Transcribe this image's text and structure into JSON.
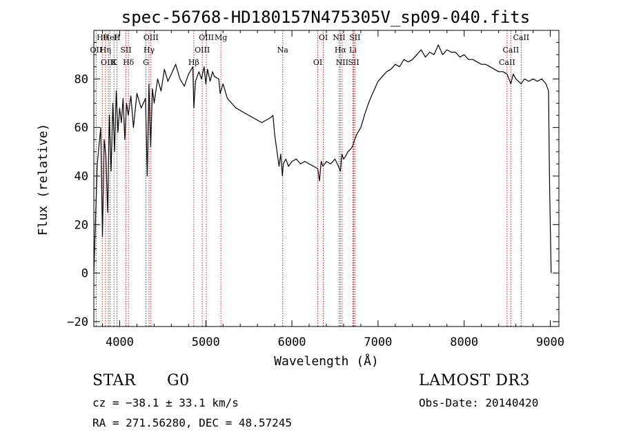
{
  "chart_data": {
    "type": "line",
    "title": "spec-56768-HD180157N475305V_sp09-040.fits",
    "xlabel": "Wavelength (Å)",
    "ylabel": "Flux (relative)",
    "xlim": [
      3700,
      9100
    ],
    "ylim": [
      -22,
      100
    ],
    "xticks": [
      4000,
      5000,
      6000,
      7000,
      8000,
      9000
    ],
    "xtick_labels": [
      "4000",
      "5000",
      "6000",
      "7000",
      "8000",
      "9000"
    ],
    "yticks": [
      -20,
      0,
      20,
      40,
      60,
      80
    ],
    "ytick_labels": [
      "−20",
      "0",
      "20",
      "40",
      "60",
      "80"
    ],
    "grid": false,
    "series": [
      {
        "color": "#000000",
        "x": [
          3700,
          3740,
          3780,
          3800,
          3820,
          3840,
          3860,
          3880,
          3900,
          3920,
          3940,
          3960,
          3980,
          4000,
          4020,
          4040,
          4060,
          4080,
          4100,
          4130,
          4160,
          4200,
          4250,
          4300,
          4320,
          4340,
          4360,
          4380,
          4400,
          4440,
          4480,
          4520,
          4560,
          4600,
          4650,
          4700,
          4750,
          4800,
          4850,
          4861,
          4880,
          4920,
          4950,
          4980,
          5000,
          5020,
          5050,
          5080,
          5100,
          5150,
          5167,
          5200,
          5250,
          5300,
          5350,
          5400,
          5450,
          5500,
          5550,
          5600,
          5650,
          5700,
          5750,
          5780,
          5800,
          5850,
          5870,
          5890,
          5900,
          5930,
          5960,
          6000,
          6050,
          6100,
          6150,
          6200,
          6250,
          6300,
          6320,
          6340,
          6360,
          6400,
          6450,
          6500,
          6540,
          6563,
          6580,
          6600,
          6620,
          6650,
          6680,
          6700,
          6720,
          6750,
          6800,
          6850,
          6900,
          6950,
          7000,
          7050,
          7100,
          7150,
          7200,
          7250,
          7300,
          7350,
          7400,
          7450,
          7500,
          7550,
          7600,
          7650,
          7700,
          7750,
          7800,
          7850,
          7900,
          7950,
          8000,
          8050,
          8100,
          8150,
          8200,
          8250,
          8300,
          8350,
          8400,
          8450,
          8498,
          8520,
          8542,
          8570,
          8600,
          8630,
          8662,
          8700,
          8750,
          8800,
          8850,
          8900,
          8950,
          8980,
          8990,
          9000,
          9010
        ],
        "y": [
          0,
          45,
          60,
          15,
          55,
          48,
          25,
          65,
          42,
          70,
          50,
          75,
          58,
          68,
          62,
          72,
          55,
          70,
          65,
          73,
          60,
          74,
          68,
          72,
          40,
          78,
          52,
          76,
          70,
          80,
          75,
          84,
          79,
          82,
          86,
          80,
          77,
          82,
          85,
          68,
          79,
          83,
          80,
          85,
          78,
          84,
          79,
          83,
          81,
          80,
          74,
          78,
          72,
          70,
          68,
          67,
          66,
          65,
          64,
          63,
          62,
          63,
          64,
          65,
          57,
          44,
          49,
          40,
          45,
          47,
          44,
          46,
          47,
          45,
          46,
          45,
          44,
          43,
          38,
          46,
          44,
          46,
          45,
          47,
          44,
          42,
          49,
          47,
          48,
          50,
          51,
          52,
          54,
          57,
          60,
          66,
          71,
          75,
          79,
          81,
          83,
          84,
          86,
          85,
          88,
          87,
          88,
          90,
          92,
          89,
          91,
          90,
          94,
          90,
          92,
          91,
          91,
          89,
          90,
          88,
          88,
          87,
          86,
          86,
          85,
          84,
          83,
          83,
          82,
          80,
          78,
          82,
          80,
          79,
          78,
          80,
          79,
          80,
          79,
          80,
          78,
          75,
          40,
          20,
          0
        ]
      }
    ],
    "line_markers": [
      {
        "label": "Hθ",
        "wavelength": 3798
      },
      {
        "label": "OII",
        "wavelength": 3727
      },
      {
        "label": "OIII",
        "wavelength": 3869
      },
      {
        "label": "HeI",
        "wavelength": 3889
      },
      {
        "label": "Hη",
        "wavelength": 3835
      },
      {
        "label": "K",
        "wavelength": 3934
      },
      {
        "label": "H",
        "wavelength": 3969
      },
      {
        "label": "SII",
        "wavelength": 4072
      },
      {
        "label": "Hδ",
        "wavelength": 4102
      },
      {
        "label": "OIII",
        "wavelength": 4363
      },
      {
        "label": "Hγ",
        "wavelength": 4341
      },
      {
        "label": "G",
        "wavelength": 4305
      },
      {
        "label": "OIII",
        "wavelength": 5007
      },
      {
        "label": "OIII",
        "wavelength": 4959
      },
      {
        "label": "Hβ",
        "wavelength": 4861
      },
      {
        "label": "Mg",
        "wavelength": 5175
      },
      {
        "label": "Na",
        "wavelength": 5893
      },
      {
        "label": "OI",
        "wavelength": 6300
      },
      {
        "label": "OI",
        "wavelength": 6364
      },
      {
        "label": "Hα",
        "wavelength": 6563
      },
      {
        "label": "SII",
        "wavelength": 6717
      },
      {
        "label": "NII",
        "wavelength": 6548
      },
      {
        "label": "Li",
        "wavelength": 6708
      },
      {
        "label": "NII",
        "wavelength": 6583
      },
      {
        "label": "SII",
        "wavelength": 6731
      },
      {
        "label": "CaII",
        "wavelength": 8542
      },
      {
        "label": "CaII",
        "wavelength": 8498
      },
      {
        "label": "CaII",
        "wavelength": 8662
      }
    ]
  },
  "info": {
    "object_class": "STAR",
    "subclass": "G0",
    "survey": "LAMOST DR3",
    "cz": "cz = −38.1 ± 33.1 km/s",
    "obs_date": "Obs-Date: 20140420",
    "coords": "RA = 271.56280, DEC =  48.57245"
  },
  "colors": {
    "spectrum": "#000000",
    "markers": "#b22222",
    "axes": "#000000"
  }
}
